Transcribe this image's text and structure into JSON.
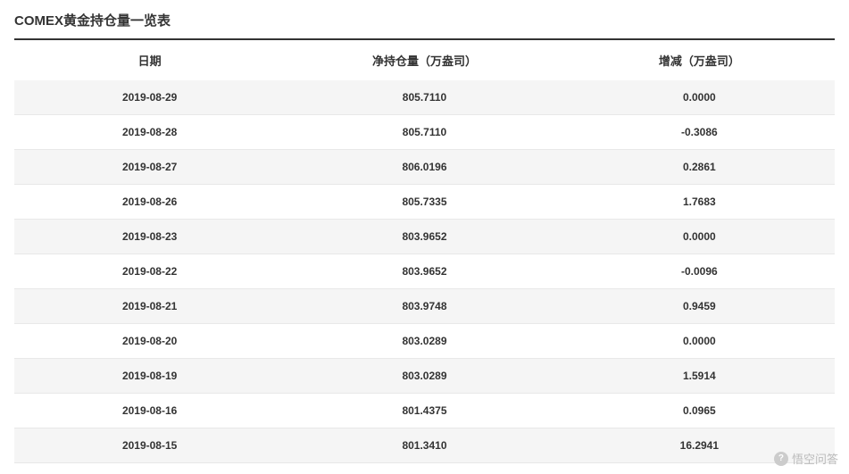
{
  "title": "COMEX黄金持仓量一览表",
  "table": {
    "columns": [
      "日期",
      "净持仓量（万盎司）",
      "增减（万盎司）"
    ],
    "rows": [
      [
        "2019-08-29",
        "805.7110",
        "0.0000"
      ],
      [
        "2019-08-28",
        "805.7110",
        "-0.3086"
      ],
      [
        "2019-08-27",
        "806.0196",
        "0.2861"
      ],
      [
        "2019-08-26",
        "805.7335",
        "1.7683"
      ],
      [
        "2019-08-23",
        "803.9652",
        "0.0000"
      ],
      [
        "2019-08-22",
        "803.9652",
        "-0.0096"
      ],
      [
        "2019-08-21",
        "803.9748",
        "0.9459"
      ],
      [
        "2019-08-20",
        "803.0289",
        "0.0000"
      ],
      [
        "2019-08-19",
        "803.0289",
        "1.5914"
      ],
      [
        "2019-08-16",
        "801.4375",
        "0.0965"
      ],
      [
        "2019-08-15",
        "801.3410",
        "16.2941"
      ]
    ]
  },
  "watermark": {
    "text": "悟空问答"
  },
  "styling": {
    "title_color": "#333333",
    "title_fontsize": 15,
    "header_border_color": "#333333",
    "row_odd_bg": "#f5f5f5",
    "row_even_bg": "#ffffff",
    "cell_border_color": "#e8e8e8",
    "text_color": "#333333",
    "cell_fontsize": 12,
    "header_fontsize": 13,
    "watermark_color": "#bbbbbb"
  }
}
